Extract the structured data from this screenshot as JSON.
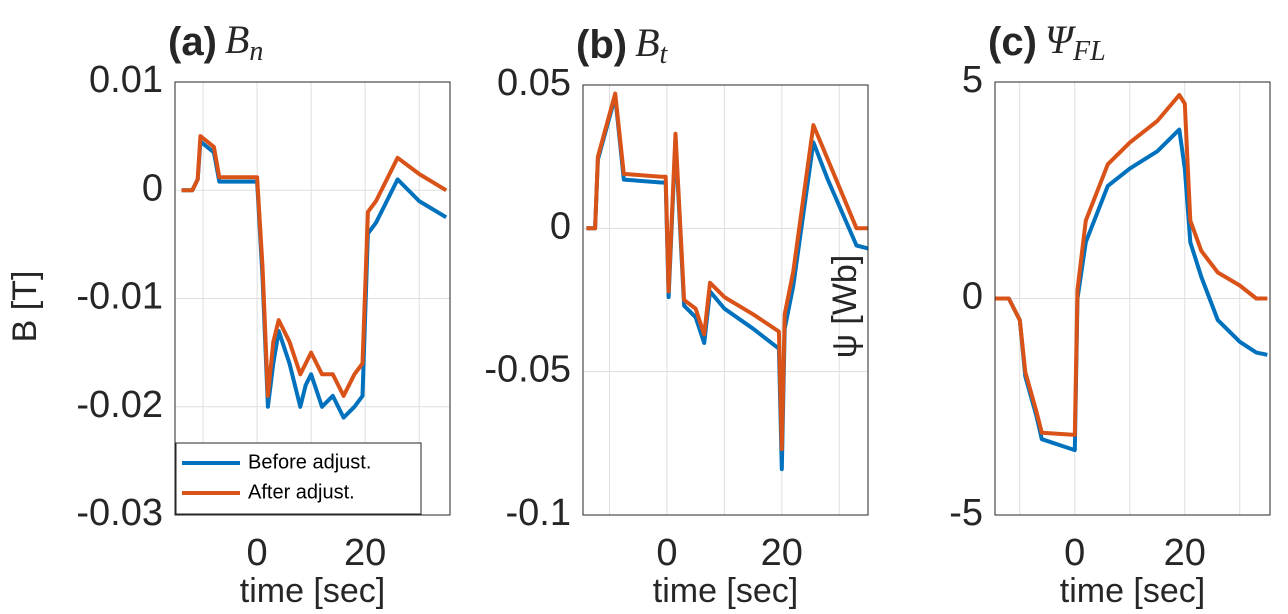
{
  "chart_data": [
    {
      "type": "line",
      "panel": "(a)",
      "title": "B",
      "title_sub": "n",
      "ylabel": "B [T]",
      "xlabel": "time [sec]",
      "x": [
        -14,
        -12,
        -11,
        -10.5,
        -8,
        -7,
        -1,
        0,
        1,
        2,
        3,
        4,
        6,
        8,
        9,
        10,
        12,
        14,
        16,
        18,
        19.5,
        20.5,
        22,
        26,
        30,
        35
      ],
      "series": [
        {
          "name": "Before adjust.",
          "color": "#0072BD",
          "values": [
            0,
            0,
            0.001,
            0.0045,
            0.0035,
            0.0008,
            0.0008,
            0.0008,
            -0.008,
            -0.02,
            -0.016,
            -0.013,
            -0.016,
            -0.02,
            -0.018,
            -0.017,
            -0.02,
            -0.019,
            -0.021,
            -0.02,
            -0.019,
            -0.004,
            -0.003,
            0.001,
            -0.001,
            -0.0025
          ]
        },
        {
          "name": "After adjust.",
          "color": "#D95319",
          "values": [
            0,
            0,
            0.001,
            0.005,
            0.004,
            0.0012,
            0.0012,
            0.0012,
            -0.007,
            -0.019,
            -0.014,
            -0.012,
            -0.014,
            -0.017,
            -0.016,
            -0.015,
            -0.017,
            -0.017,
            -0.019,
            -0.017,
            -0.016,
            -0.002,
            -0.001,
            0.003,
            0.0015,
            0
          ]
        }
      ],
      "xlim": [
        -15.2,
        35.7
      ],
      "xticks": [
        0,
        20
      ],
      "xminorticks": [
        -10,
        10,
        30
      ],
      "ylim": [
        -0.03,
        0.01
      ],
      "yticks": [
        -0.03,
        -0.02,
        -0.01,
        0,
        0.01
      ],
      "grid": true,
      "legend": "lower left"
    },
    {
      "type": "line",
      "panel": "(b)",
      "title": "B",
      "title_sub": "t",
      "xlabel": "time [sec]",
      "x": [
        -14,
        -12.5,
        -12,
        -9,
        -7.5,
        -1,
        -0.2,
        0.3,
        1.5,
        3,
        5,
        6.5,
        7.5,
        10,
        15,
        19.5,
        20,
        20.5,
        22,
        25.5,
        28,
        33,
        35
      ],
      "series": [
        {
          "name": "Before adjust.",
          "color": "#0072BD",
          "values": [
            0,
            0,
            0.024,
            0.046,
            0.017,
            0.016,
            0.016,
            -0.024,
            0.031,
            -0.027,
            -0.031,
            -0.04,
            -0.022,
            -0.028,
            -0.035,
            -0.042,
            -0.084,
            -0.035,
            -0.02,
            0.03,
            0.017,
            -0.006,
            -0.007
          ]
        },
        {
          "name": "After adjust.",
          "color": "#D95319",
          "values": [
            0,
            0,
            0.025,
            0.047,
            0.019,
            0.018,
            0.018,
            -0.022,
            0.033,
            -0.025,
            -0.028,
            -0.037,
            -0.019,
            -0.024,
            -0.03,
            -0.036,
            -0.077,
            -0.03,
            -0.015,
            0.036,
            0.024,
            0,
            0
          ]
        }
      ],
      "xlim": [
        -14.6,
        35
      ],
      "xticks": [
        0,
        20
      ],
      "xminorticks": [
        -10,
        10,
        30
      ],
      "ylim": [
        -0.1,
        0.05
      ],
      "yticks": [
        -0.1,
        -0.05,
        0,
        0.05
      ],
      "grid": true
    },
    {
      "type": "line",
      "panel": "(c)",
      "title": "Ψ",
      "title_sub": "FL",
      "ylabel": "ψ [Wb]",
      "xlabel": "time [sec]",
      "x": [
        -14.5,
        -12,
        -10,
        -9,
        -7,
        -6,
        0,
        0.5,
        2,
        6,
        10,
        15,
        19,
        20,
        21,
        23,
        26,
        30,
        33,
        35
      ],
      "series": [
        {
          "name": "Before adjust.",
          "color": "#0072BD",
          "values": [
            0,
            0,
            -0.5,
            -1.8,
            -2.7,
            -3.25,
            -3.5,
            0,
            1.3,
            2.6,
            3,
            3.4,
            3.9,
            3,
            1.3,
            0.5,
            -0.5,
            -1,
            -1.25,
            -1.3
          ]
        },
        {
          "name": "After adjust.",
          "color": "#D95319",
          "values": [
            0,
            0,
            -0.5,
            -1.7,
            -2.6,
            -3.1,
            -3.15,
            0.2,
            1.8,
            3.1,
            3.6,
            4.1,
            4.7,
            4.5,
            1.8,
            1.1,
            0.6,
            0.3,
            0,
            0
          ]
        }
      ],
      "xlim": [
        -14.5,
        35.5
      ],
      "xticks": [
        0,
        20
      ],
      "xminorticks": [
        -10,
        10,
        30
      ],
      "ylim": [
        -5,
        5
      ],
      "yticks": [
        -5,
        0,
        5
      ],
      "grid": true
    }
  ]
}
